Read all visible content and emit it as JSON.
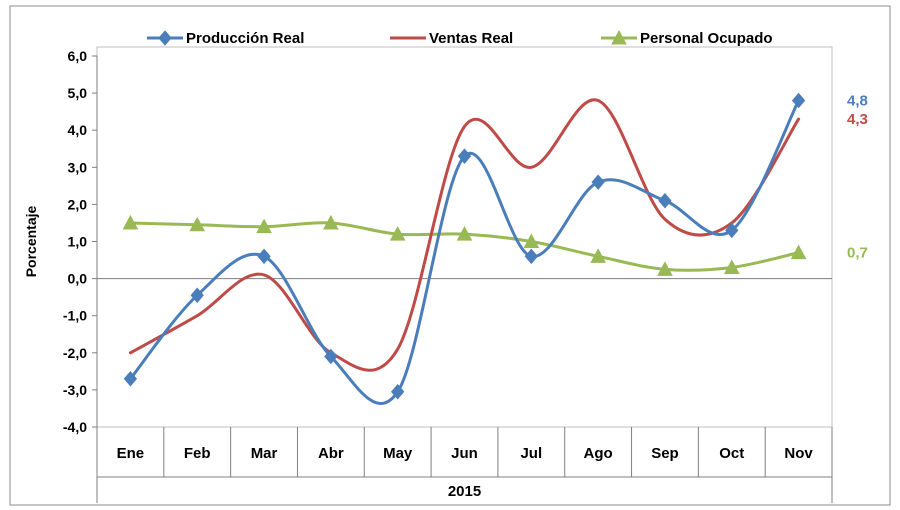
{
  "chart_data": {
    "type": "line",
    "title": "",
    "xlabel": "2015",
    "ylabel": "Porcentaje",
    "categories": [
      "Ene",
      "Feb",
      "Mar",
      "Abr",
      "May",
      "Jun",
      "Jul",
      "Ago",
      "Sep",
      "Oct",
      "Nov"
    ],
    "ylim": [
      -4.0,
      6.0
    ],
    "yticks": [
      -4.0,
      -3.0,
      -2.0,
      -1.0,
      0.0,
      1.0,
      2.0,
      3.0,
      4.0,
      5.0,
      6.0
    ],
    "ytick_labels": [
      "-4,0",
      "-3,0",
      "-2,0",
      "-1,0",
      "0,0",
      "1,0",
      "2,0",
      "3,0",
      "4,0",
      "5,0",
      "6,0"
    ],
    "grid": false,
    "legend_position": "top",
    "series": [
      {
        "name": "Producción Real",
        "color": "#4a7ebb",
        "marker": "diamond",
        "values": [
          -2.7,
          -0.45,
          0.6,
          -2.1,
          -3.05,
          3.3,
          0.6,
          2.6,
          2.1,
          1.3,
          4.8
        ],
        "end_label": "4,8"
      },
      {
        "name": "Ventas Real",
        "color": "#be4b48",
        "marker": "none",
        "values": [
          -2.0,
          -1.0,
          0.1,
          -2.0,
          -1.9,
          4.1,
          3.0,
          4.8,
          1.6,
          1.5,
          4.3
        ],
        "end_label": "4,3"
      },
      {
        "name": "Personal Ocupado",
        "color": "#98b954",
        "marker": "triangle",
        "values": [
          1.5,
          1.45,
          1.4,
          1.5,
          1.2,
          1.2,
          1.0,
          0.6,
          0.25,
          0.3,
          0.7
        ],
        "end_label": "0,7"
      }
    ]
  }
}
